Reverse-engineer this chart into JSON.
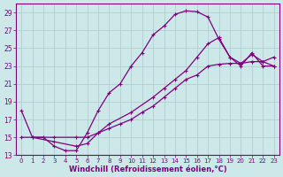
{
  "xlabel": "Windchill (Refroidissement éolien,°C)",
  "xlim": [
    0,
    23
  ],
  "ylim": [
    13,
    30
  ],
  "yticks": [
    13,
    15,
    17,
    19,
    21,
    23,
    25,
    27,
    29
  ],
  "xticks": [
    0,
    1,
    2,
    3,
    4,
    5,
    6,
    7,
    8,
    9,
    10,
    11,
    12,
    13,
    14,
    15,
    16,
    17,
    18,
    19,
    20,
    21,
    22,
    23
  ],
  "bg_color": "#cce8e8",
  "line_color": "#800080",
  "grid_color": "#aacccc",
  "line1_x": [
    0,
    1,
    2,
    3,
    4,
    5,
    6,
    7,
    8,
    9,
    10,
    11,
    12,
    13,
    14,
    15,
    16,
    17,
    18,
    19,
    20,
    21,
    22,
    23
  ],
  "line1_y": [
    18,
    15,
    15,
    14,
    13.5,
    13.5,
    15.5,
    18,
    20,
    21,
    23,
    24.5,
    26.5,
    27.5,
    28.8,
    29.2,
    29.1,
    28.5,
    26,
    24,
    23.0,
    24.5,
    23.0,
    23.0
  ],
  "line2_x": [
    1,
    3,
    5,
    6,
    7,
    8,
    10,
    12,
    13,
    14,
    15,
    16,
    17,
    18,
    19,
    20,
    21,
    22,
    23
  ],
  "line2_y": [
    15,
    14.5,
    14.0,
    14.3,
    15.5,
    16.5,
    17.8,
    19.5,
    20.5,
    21.5,
    22.5,
    24.0,
    25.5,
    26.2,
    24.0,
    23.3,
    24.3,
    23.5,
    24.0
  ],
  "line3_x": [
    0,
    3,
    5,
    6,
    7,
    8,
    9,
    10,
    11,
    12,
    13,
    14,
    15,
    16,
    17,
    18,
    19,
    20,
    21,
    22,
    23
  ],
  "line3_y": [
    15,
    15,
    15,
    15,
    15.5,
    16,
    16.5,
    17,
    17.8,
    18.5,
    19.5,
    20.5,
    21.5,
    22.0,
    23.0,
    23.2,
    23.3,
    23.3,
    23.5,
    23.5,
    23.0
  ],
  "marker": "+"
}
